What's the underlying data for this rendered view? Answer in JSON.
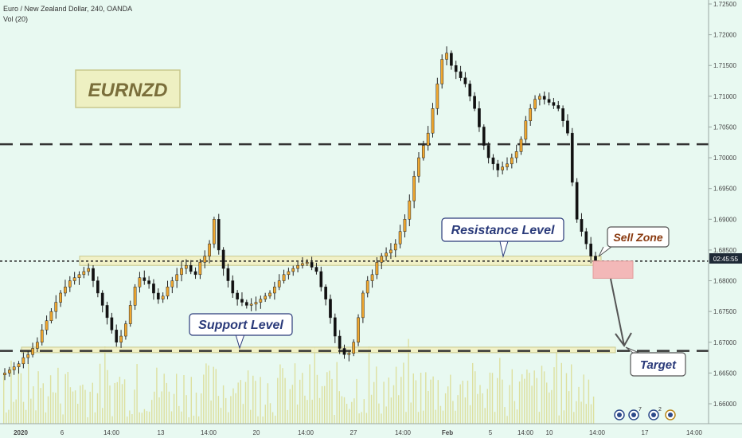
{
  "header": {
    "title": "Euro / New Zealand Dollar, 240, OANDA",
    "indicator": "Vol (20)"
  },
  "price_axis": {
    "ticks": [
      "1.72500",
      "1.72000",
      "1.71500",
      "1.71000",
      "1.70500",
      "1.70000",
      "1.69500",
      "1.69000",
      "1.68500",
      "1.68000",
      "1.67500",
      "1.67000",
      "1.66500",
      "1.66000"
    ],
    "current_price_label": "02:45:55"
  },
  "time_axis": {
    "ticks": [
      "2020",
      "6",
      "14:00",
      "13",
      "14:00",
      "20",
      "14:00",
      "27",
      "14:00",
      "Feb",
      "5",
      "14:00",
      "10",
      "14:00",
      "17",
      "14:00"
    ]
  },
  "annotations": {
    "symbol_box": "EURNZD",
    "resistance_label": "Resistance Level",
    "support_label": "Support Level",
    "sell_zone_label": "Sell Zone",
    "target_label": "Target"
  },
  "events": {
    "badge_1": "7",
    "badge_2": "2"
  },
  "colors": {
    "background": "#e8f9f1",
    "candle_up": "#f0a830",
    "candle_down": "#111111",
    "volume": "#dde0a0",
    "zone_fill": "#f2f0c0",
    "sell_zone": "#f3b8b8",
    "label_text": "#2a3a7a",
    "sell_text": "#8a3a10",
    "symbol_bg": "#eef0c2",
    "symbol_text": "#7a6e3a"
  },
  "chart_data": {
    "type": "candlestick",
    "symbol": "EURNZD",
    "timeframe": "240",
    "ylim": [
      1.658,
      1.727
    ],
    "levels": {
      "upper_dashed": 1.7022,
      "resistance_zone": [
        1.6825,
        1.684
      ],
      "support_zone": [
        1.6683,
        1.6692
      ],
      "lower_dashed": 1.6686,
      "current_price": 1.6832
    },
    "sell_zone": [
      1.6804,
      1.6832
    ],
    "close_path": [
      1.665,
      1.6655,
      1.666,
      1.6665,
      1.6675,
      1.668,
      1.669,
      1.67,
      1.672,
      1.6735,
      1.675,
      1.6765,
      1.678,
      1.679,
      1.68,
      1.6805,
      1.681,
      1.6815,
      1.682,
      1.68,
      1.678,
      1.676,
      1.674,
      1.672,
      1.67,
      1.671,
      1.673,
      1.676,
      1.679,
      1.6805,
      1.68,
      1.6795,
      1.678,
      1.677,
      1.6775,
      1.679,
      1.68,
      1.681,
      1.682,
      1.6825,
      1.6815,
      1.681,
      1.683,
      1.684,
      1.686,
      1.69,
      1.685,
      1.682,
      1.68,
      1.678,
      1.677,
      1.6765,
      1.676,
      1.6762,
      1.6765,
      1.677,
      1.6775,
      1.678,
      1.679,
      1.68,
      1.681,
      1.6815,
      1.682,
      1.6825,
      1.6828,
      1.683,
      1.6822,
      1.6815,
      1.679,
      1.677,
      1.674,
      1.671,
      1.669,
      1.668,
      1.6682,
      1.67,
      1.674,
      1.678,
      1.68,
      1.681,
      1.683,
      1.684,
      1.6845,
      1.685,
      1.686,
      1.688,
      1.69,
      1.693,
      1.697,
      1.7,
      1.702,
      1.704,
      1.708,
      1.712,
      1.716,
      1.717,
      1.715,
      1.714,
      1.713,
      1.712,
      1.71,
      1.708,
      1.705,
      1.702,
      1.7,
      1.699,
      1.698,
      1.6985,
      1.699,
      1.7,
      1.701,
      1.703,
      1.706,
      1.708,
      1.7095,
      1.71,
      1.7095,
      1.709,
      1.7085,
      1.708,
      1.706,
      1.704,
      1.696,
      1.69,
      1.688,
      1.686,
      1.684,
      1.6832
    ]
  }
}
